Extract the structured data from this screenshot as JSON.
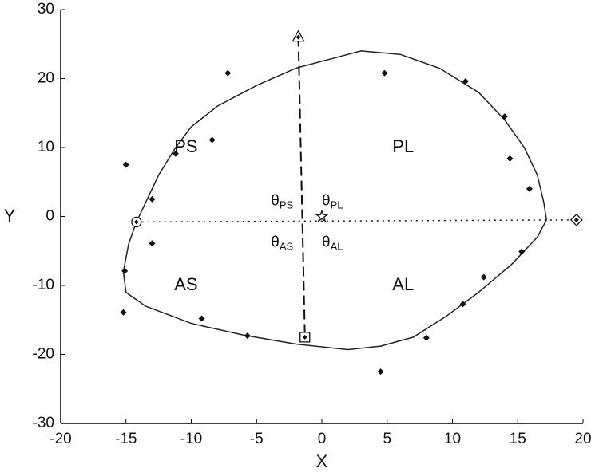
{
  "chart_data": {
    "type": "scatter",
    "xlabel": "X",
    "ylabel": "Y",
    "xlim": [
      -20,
      20
    ],
    "ylim": [
      -30,
      30
    ],
    "xticks": [
      -20,
      -15,
      -10,
      -5,
      0,
      5,
      10,
      15,
      20
    ],
    "yticks": [
      -30,
      -20,
      -10,
      0,
      10,
      20,
      30
    ],
    "points": {
      "color": "#111",
      "x": [
        -7.2,
        4.8,
        11,
        14,
        14.4,
        15.9,
        -15,
        -13,
        -11.2,
        -8.4,
        -13,
        -15.1,
        -15.2,
        -9.2,
        -5.7,
        4.5,
        8,
        10.8,
        12.4,
        15.3
      ],
      "y": [
        20.8,
        20.8,
        19.6,
        14.5,
        8.4,
        4,
        7.5,
        2.5,
        9.1,
        11.1,
        -3.9,
        -7.9,
        -13.9,
        -14.8,
        -17.3,
        -22.5,
        -17.6,
        -12.7,
        -8.8,
        -5.1
      ]
    },
    "outline": {
      "color": "#222",
      "x": [
        -14.2,
        -13.5,
        -12.5,
        -11.2,
        -10,
        -8,
        -5,
        -2,
        1,
        3,
        6,
        9,
        12,
        14,
        15.5,
        16.5,
        17,
        17.2,
        16.5,
        14.5,
        12,
        9.5,
        7,
        4.5,
        2,
        -2,
        -6,
        -10,
        -13.5,
        -15,
        -15.2,
        -14.8,
        -14.2
      ],
      "y": [
        -0.8,
        2,
        6,
        10,
        13,
        16,
        19,
        21.5,
        23,
        24,
        23.5,
        21.5,
        18,
        14,
        10,
        6,
        2,
        -0.5,
        -3,
        -7,
        -11,
        -14.5,
        -17.5,
        -18.8,
        -19.3,
        -18.5,
        -17.2,
        -15.5,
        -13,
        -11,
        -8,
        -4,
        -0.8
      ]
    },
    "dashed_line": {
      "x": [
        -1.8,
        -1.3
      ],
      "y": [
        26,
        -17.5
      ]
    },
    "dotted_line": {
      "x": [
        -14.2,
        19.5
      ],
      "y": [
        -0.8,
        -0.5
      ]
    },
    "markers": [
      {
        "shape": "circle",
        "x": -14.2,
        "y": -0.8
      },
      {
        "shape": "diamond",
        "x": 19.5,
        "y": -0.5
      },
      {
        "shape": "triangle",
        "x": -1.8,
        "y": 26
      },
      {
        "shape": "square",
        "x": -1.3,
        "y": -17.5
      },
      {
        "shape": "star",
        "x": 0,
        "y": 0
      }
    ],
    "region_labels": [
      {
        "text": "PS",
        "x": -11.3,
        "y": 10
      },
      {
        "text": "PL",
        "x": 5.4,
        "y": 10
      },
      {
        "text": "AS",
        "x": -11.3,
        "y": -10
      },
      {
        "text": "AL",
        "x": 5.4,
        "y": -10
      }
    ],
    "angle_labels": [
      {
        "symbol": "θ",
        "sub": "PS",
        "x": -3.9,
        "y": 2.2
      },
      {
        "symbol": "θ",
        "sub": "PL",
        "x": 0,
        "y": 2.2
      },
      {
        "symbol": "θ",
        "sub": "AS",
        "x": -3.9,
        "y": -3.8
      },
      {
        "symbol": "θ",
        "sub": "AL",
        "x": 0,
        "y": -3.8
      }
    ]
  }
}
